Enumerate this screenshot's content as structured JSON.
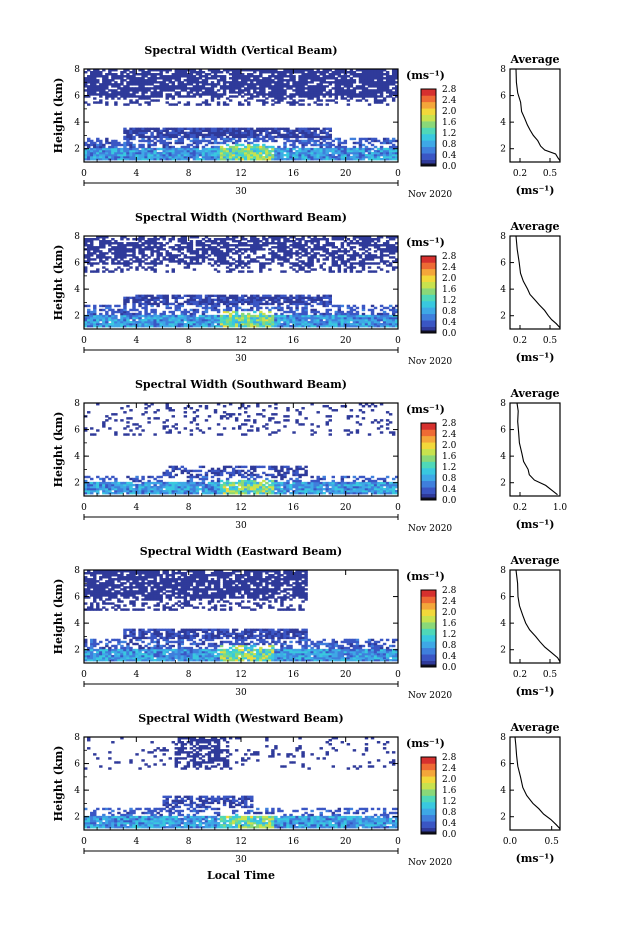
{
  "figure": {
    "xlabel": "Local Time",
    "date_label": "Nov 2020",
    "day_label": "30"
  },
  "palette": [
    "#2f3a9a",
    "#3a56c4",
    "#3f7fdc",
    "#3ea8e6",
    "#39c8df",
    "#4fd8b8",
    "#8ad878",
    "#c8e24e",
    "#f2d83a",
    "#f4a63a",
    "#ee6a34",
    "#d6302e"
  ],
  "chart_data": [
    {
      "type": "heatmap",
      "title": "Spectral Width (Vertical Beam)",
      "xlabel": "Local Time",
      "ylabel": "Height (km)",
      "xlim": [
        0,
        24
      ],
      "ylim": [
        1,
        8
      ],
      "xticks": [
        "0",
        "4",
        "8",
        "12",
        "16",
        "20",
        "0"
      ],
      "yticks": [
        "2",
        "4",
        "6",
        "8"
      ],
      "colorbar": {
        "unit": "(ms⁻¹)",
        "ticks": [
          "0.0",
          "0.4",
          "0.8",
          "1.2",
          "1.6",
          "2.0",
          "2.4",
          "2.8"
        ],
        "range": [
          0,
          2.8
        ]
      },
      "regions": [
        {
          "y": [
            1.1,
            2.1
          ],
          "x": [
            0,
            24
          ],
          "mean": 0.75,
          "density": 0.97
        },
        {
          "y": [
            2.1,
            2.8
          ],
          "x": [
            0,
            24
          ],
          "mean": 0.35,
          "density": 0.55
        },
        {
          "y": [
            2.8,
            3.6
          ],
          "x": [
            3,
            19
          ],
          "mean": 0.2,
          "density": 0.85
        },
        {
          "y": [
            5.8,
            8.0
          ],
          "x": [
            0,
            24
          ],
          "mean": 0.12,
          "density": 0.78
        },
        {
          "y": [
            5.2,
            5.8
          ],
          "x": [
            0,
            24
          ],
          "mean": 0.1,
          "density": 0.35
        }
      ],
      "hotspot": {
        "x": [
          10.5,
          14.5
        ],
        "y": [
          1.2,
          2.3
        ],
        "mean": 1.4
      },
      "average": {
        "title": "Average",
        "xlabel": "(ms⁻¹)",
        "xlim": [
          0.1,
          0.6
        ],
        "xticks": [
          0.2,
          0.5
        ],
        "xticklabels": [
          "0.2",
          "0.5"
        ],
        "yticks": [
          "2",
          "4",
          "6",
          "8"
        ],
        "profile": [
          [
            0.6,
            1.1
          ],
          [
            0.58,
            1.3
          ],
          [
            0.55,
            1.6
          ],
          [
            0.45,
            1.9
          ],
          [
            0.4,
            2.2
          ],
          [
            0.38,
            2.6
          ],
          [
            0.33,
            3.0
          ],
          [
            0.3,
            3.4
          ],
          [
            0.28,
            3.8
          ],
          [
            0.24,
            4.3
          ],
          [
            0.22,
            4.8
          ],
          [
            0.2,
            5.5
          ],
          [
            0.18,
            6.2
          ],
          [
            0.17,
            7.0
          ],
          [
            0.16,
            8.0
          ]
        ]
      }
    },
    {
      "type": "heatmap",
      "title": "Spectral Width (Northward Beam)",
      "xlabel": "Local Time",
      "ylabel": "Height (km)",
      "xlim": [
        0,
        24
      ],
      "ylim": [
        1,
        8
      ],
      "xticks": [
        "0",
        "4",
        "8",
        "12",
        "16",
        "20",
        "0"
      ],
      "yticks": [
        "2",
        "4",
        "6",
        "8"
      ],
      "colorbar": {
        "unit": "(ms⁻¹)",
        "ticks": [
          "0.0",
          "0.4",
          "0.8",
          "1.2",
          "1.6",
          "2.0",
          "2.4",
          "2.8"
        ],
        "range": [
          0,
          2.8
        ]
      },
      "regions": [
        {
          "y": [
            1.1,
            2.1
          ],
          "x": [
            0,
            24
          ],
          "mean": 0.75,
          "density": 0.96
        },
        {
          "y": [
            2.1,
            2.8
          ],
          "x": [
            0,
            24
          ],
          "mean": 0.35,
          "density": 0.5
        },
        {
          "y": [
            2.8,
            3.6
          ],
          "x": [
            3,
            19
          ],
          "mean": 0.22,
          "density": 0.8
        },
        {
          "y": [
            5.8,
            8.0
          ],
          "x": [
            0,
            24
          ],
          "mean": 0.12,
          "density": 0.6
        },
        {
          "y": [
            5.2,
            5.8
          ],
          "x": [
            0,
            24
          ],
          "mean": 0.1,
          "density": 0.3
        }
      ],
      "hotspot": {
        "x": [
          10.5,
          14.5
        ],
        "y": [
          1.2,
          2.3
        ],
        "mean": 1.4
      },
      "average": {
        "title": "Average",
        "xlabel": "(ms⁻¹)",
        "xlim": [
          0.1,
          0.6
        ],
        "xticks": [
          0.2,
          0.5
        ],
        "xticklabels": [
          "0.2",
          "0.5"
        ],
        "yticks": [
          "2",
          "4",
          "6",
          "8"
        ],
        "profile": [
          [
            0.6,
            1.1
          ],
          [
            0.56,
            1.4
          ],
          [
            0.52,
            1.7
          ],
          [
            0.48,
            2.0
          ],
          [
            0.44,
            2.4
          ],
          [
            0.4,
            2.8
          ],
          [
            0.35,
            3.2
          ],
          [
            0.3,
            3.6
          ],
          [
            0.27,
            4.0
          ],
          [
            0.24,
            4.6
          ],
          [
            0.21,
            5.2
          ],
          [
            0.19,
            6.0
          ],
          [
            0.17,
            7.0
          ],
          [
            0.16,
            8.0
          ]
        ]
      }
    },
    {
      "type": "heatmap",
      "title": "Spectral Width (Southward Beam)",
      "xlabel": "Local Time",
      "ylabel": "Height (km)",
      "xlim": [
        0,
        24
      ],
      "ylim": [
        1,
        8
      ],
      "xticks": [
        "0",
        "4",
        "8",
        "12",
        "16",
        "20",
        "0"
      ],
      "yticks": [
        "2",
        "4",
        "6",
        "8"
      ],
      "colorbar": {
        "unit": "(ms⁻¹)",
        "ticks": [
          "0.0",
          "0.4",
          "0.8",
          "1.2",
          "1.6",
          "2.0",
          "2.4",
          "2.8"
        ],
        "range": [
          0,
          2.8
        ]
      },
      "regions": [
        {
          "y": [
            1.1,
            2.0
          ],
          "x": [
            0,
            24
          ],
          "mean": 0.75,
          "density": 0.95
        },
        {
          "y": [
            2.0,
            2.5
          ],
          "x": [
            0,
            24
          ],
          "mean": 0.35,
          "density": 0.35
        },
        {
          "y": [
            2.5,
            3.3
          ],
          "x": [
            6,
            17
          ],
          "mean": 0.22,
          "density": 0.55
        },
        {
          "y": [
            5.5,
            8.0
          ],
          "x": [
            0,
            24
          ],
          "mean": 0.12,
          "density": 0.15
        }
      ],
      "hotspot": {
        "x": [
          10.5,
          14.5
        ],
        "y": [
          1.2,
          2.2
        ],
        "mean": 1.4
      },
      "average": {
        "title": "Average",
        "xlabel": "(ms⁻¹)",
        "xlim": [
          0.0,
          1.0
        ],
        "xticks": [
          0.2,
          1.0
        ],
        "xticklabels": [
          "0.2",
          "1.0"
        ],
        "yticks": [
          "2",
          "4",
          "6",
          "8"
        ],
        "profile": [
          [
            0.95,
            1.1
          ],
          [
            0.85,
            1.4
          ],
          [
            0.7,
            1.8
          ],
          [
            0.5,
            2.2
          ],
          [
            0.4,
            2.6
          ],
          [
            0.35,
            3.0
          ],
          [
            0.28,
            3.6
          ],
          [
            0.24,
            4.2
          ],
          [
            0.2,
            5.0
          ],
          [
            0.18,
            5.8
          ],
          [
            0.16,
            6.6
          ],
          [
            0.15,
            7.4
          ],
          [
            0.14,
            8.0
          ]
        ]
      }
    },
    {
      "type": "heatmap",
      "title": "Spectral Width (Eastward Beam)",
      "xlabel": "Local Time",
      "ylabel": "Height (km)",
      "xlim": [
        0,
        24
      ],
      "ylim": [
        1,
        8
      ],
      "xticks": [
        "0",
        "4",
        "8",
        "12",
        "16",
        "20",
        "0"
      ],
      "yticks": [
        "2",
        "4",
        "6",
        "8"
      ],
      "colorbar": {
        "unit": "(ms⁻¹)",
        "ticks": [
          "0.0",
          "0.4",
          "0.8",
          "1.2",
          "1.6",
          "2.0",
          "2.4",
          "2.8"
        ],
        "range": [
          0,
          2.8
        ]
      },
      "regions": [
        {
          "y": [
            1.1,
            2.1
          ],
          "x": [
            0,
            24
          ],
          "mean": 0.75,
          "density": 0.96
        },
        {
          "y": [
            2.1,
            2.8
          ],
          "x": [
            0,
            24
          ],
          "mean": 0.35,
          "density": 0.5
        },
        {
          "y": [
            2.8,
            3.6
          ],
          "x": [
            3,
            17
          ],
          "mean": 0.22,
          "density": 0.8
        },
        {
          "y": [
            5.8,
            8.0
          ],
          "x": [
            0,
            17
          ],
          "mean": 0.12,
          "density": 0.78
        },
        {
          "y": [
            5.0,
            5.8
          ],
          "x": [
            0,
            17
          ],
          "mean": 0.1,
          "density": 0.35
        }
      ],
      "hotspot": {
        "x": [
          10.5,
          14.5
        ],
        "y": [
          1.2,
          2.3
        ],
        "mean": 1.4
      },
      "average": {
        "title": "Average",
        "xlabel": "(ms⁻¹)",
        "xlim": [
          0.1,
          0.6
        ],
        "xticks": [
          0.2,
          0.5
        ],
        "xticklabels": [
          "0.2",
          "0.5"
        ],
        "yticks": [
          "2",
          "4",
          "6",
          "8"
        ],
        "profile": [
          [
            0.6,
            1.1
          ],
          [
            0.57,
            1.4
          ],
          [
            0.52,
            1.8
          ],
          [
            0.45,
            2.2
          ],
          [
            0.4,
            2.6
          ],
          [
            0.35,
            3.0
          ],
          [
            0.3,
            3.5
          ],
          [
            0.26,
            4.0
          ],
          [
            0.22,
            4.6
          ],
          [
            0.2,
            5.3
          ],
          [
            0.18,
            6.0
          ],
          [
            0.17,
            7.0
          ],
          [
            0.16,
            8.0
          ]
        ]
      }
    },
    {
      "type": "heatmap",
      "title": "Spectral Width (Westward Beam)",
      "xlabel": "Local Time",
      "ylabel": "Height (km)",
      "xlim": [
        0,
        24
      ],
      "ylim": [
        1,
        8
      ],
      "xticks": [
        "0",
        "4",
        "8",
        "12",
        "16",
        "20",
        "0"
      ],
      "yticks": [
        "2",
        "4",
        "6",
        "8"
      ],
      "colorbar": {
        "unit": "(ms⁻¹)",
        "ticks": [
          "0.0",
          "0.4",
          "0.8",
          "1.2",
          "1.6",
          "2.0",
          "2.4",
          "2.8"
        ],
        "range": [
          0,
          2.8
        ]
      },
      "regions": [
        {
          "y": [
            1.1,
            2.0
          ],
          "x": [
            0,
            24
          ],
          "mean": 0.75,
          "density": 0.95
        },
        {
          "y": [
            2.0,
            2.6
          ],
          "x": [
            0,
            24
          ],
          "mean": 0.35,
          "density": 0.4
        },
        {
          "y": [
            2.6,
            3.6
          ],
          "x": [
            6,
            13
          ],
          "mean": 0.22,
          "density": 0.6
        },
        {
          "y": [
            5.5,
            8.0
          ],
          "x": [
            7,
            11
          ],
          "mean": 0.12,
          "density": 0.55
        },
        {
          "y": [
            5.5,
            8.0
          ],
          "x": [
            0,
            24
          ],
          "mean": 0.12,
          "density": 0.08
        }
      ],
      "hotspot": {
        "x": [
          10.5,
          14.5
        ],
        "y": [
          1.2,
          2.2
        ],
        "mean": 1.4
      },
      "average": {
        "title": "Average",
        "xlabel": "(ms⁻¹)",
        "xlim": [
          0.0,
          0.6
        ],
        "xticks": [
          0.0,
          0.5
        ],
        "xticklabels": [
          "0.0",
          "0.5"
        ],
        "yticks": [
          "2",
          "4",
          "6",
          "8"
        ],
        "profile": [
          [
            0.6,
            1.1
          ],
          [
            0.55,
            1.4
          ],
          [
            0.48,
            1.8
          ],
          [
            0.4,
            2.2
          ],
          [
            0.35,
            2.6
          ],
          [
            0.28,
            3.0
          ],
          [
            0.2,
            3.6
          ],
          [
            0.16,
            4.2
          ],
          [
            0.12,
            5.0
          ],
          [
            0.1,
            5.8
          ],
          [
            0.08,
            6.6
          ],
          [
            0.07,
            7.4
          ],
          [
            0.06,
            8.0
          ]
        ]
      }
    }
  ]
}
